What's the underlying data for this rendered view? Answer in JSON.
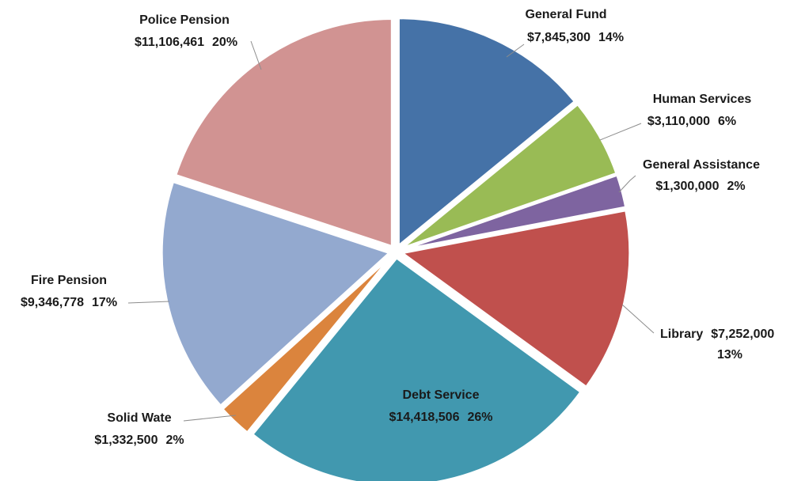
{
  "chart_data": {
    "type": "pie",
    "slices": [
      {
        "name": "General Fund",
        "value": 7845300,
        "value_label": "$7,845,300",
        "percent_label": "14%",
        "color": "#4572a7"
      },
      {
        "name": "Human Services",
        "value": 3110000,
        "value_label": "$3,110,000",
        "percent_label": "6%",
        "color": "#99bb55"
      },
      {
        "name": "General Assistance",
        "value": 1300000,
        "value_label": "$1,300,000",
        "percent_label": "2%",
        "color": "#7e64a0"
      },
      {
        "name": "Library",
        "value": 7252000,
        "value_label": "$7,252,000",
        "percent_label": "13%",
        "color": "#c0504d"
      },
      {
        "name": "Debt Service",
        "value": 14418506,
        "value_label": "$14,418,506",
        "percent_label": "26%",
        "color": "#4198af"
      },
      {
        "name": "Solid Wate",
        "value": 1332500,
        "value_label": "$1,332,500",
        "percent_label": "2%",
        "color": "#db843d"
      },
      {
        "name": "Fire Pension",
        "value": 9346778,
        "value_label": "$9,346,778",
        "percent_label": "17%",
        "color": "#93a9cf"
      },
      {
        "name": "Police Pension",
        "value": 11106461,
        "value_label": "$11,106,461",
        "percent_label": "20%",
        "color": "#d19392"
      }
    ],
    "start": "12 o'clock",
    "direction": "clockwise",
    "exploded": true
  }
}
